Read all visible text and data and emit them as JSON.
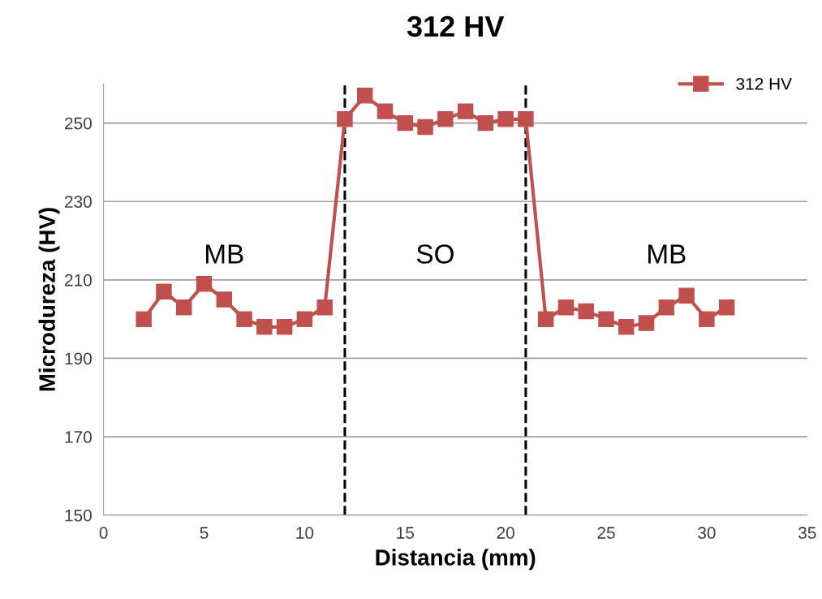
{
  "chart_data": {
    "type": "line",
    "title": "312 HV",
    "xlabel": "Distancia (mm)",
    "ylabel": "Microdureza (HV)",
    "x": [
      2,
      3,
      4,
      5,
      6,
      7,
      8,
      9,
      10,
      11,
      12,
      13,
      14,
      15,
      16,
      17,
      18,
      19,
      20,
      21,
      22,
      23,
      24,
      25,
      26,
      27,
      28,
      29,
      30,
      31
    ],
    "series": [
      {
        "name": "312 HV",
        "color": "#c0504d",
        "values": [
          200,
          207,
          203,
          209,
          205,
          200,
          198,
          198,
          200,
          203,
          251,
          257,
          253,
          250,
          249,
          251,
          253,
          250,
          251,
          251,
          200,
          203,
          202,
          200,
          198,
          199,
          203,
          206,
          200,
          203
        ]
      }
    ],
    "xlim": [
      0,
      35
    ],
    "xticks": [
      0,
      5,
      10,
      15,
      20,
      25,
      30,
      35
    ],
    "ylim": [
      150,
      260
    ],
    "yticks": [
      150,
      170,
      190,
      210,
      230,
      250
    ],
    "grid": "y",
    "legend": "top right",
    "marker": "square",
    "line_style": "solid",
    "ref_lines": [
      {
        "axis": "x",
        "value": 12,
        "color": "#000000",
        "line_style": "dashed"
      },
      {
        "axis": "x",
        "value": 21,
        "color": "#000000",
        "line_style": "dashed"
      }
    ],
    "annotations": [
      "MB",
      "SO",
      "MB"
    ]
  }
}
